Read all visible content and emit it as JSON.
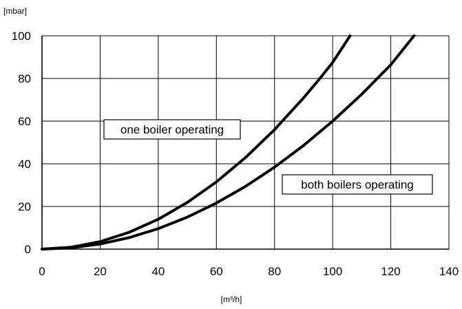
{
  "chart_data": {
    "type": "line",
    "title": "",
    "xlabel": "[m³/h]",
    "ylabel": "[mbar]",
    "xlim": [
      0,
      140
    ],
    "ylim": [
      0,
      100
    ],
    "xticks": [
      0,
      20,
      40,
      60,
      80,
      100,
      120,
      140
    ],
    "yticks": [
      0,
      20,
      40,
      60,
      80,
      100
    ],
    "grid": true,
    "legend": "none",
    "line_color": "#000000",
    "series": [
      {
        "x": [
          0,
          10,
          20,
          30,
          40,
          50,
          60,
          70,
          80,
          90,
          95,
          100,
          106
        ],
        "y": [
          0,
          0.9,
          3.5,
          7.9,
          14,
          21.9,
          31.5,
          42.9,
          56,
          70.9,
          79,
          87.5,
          100
        ]
      },
      {
        "x": [
          0,
          10,
          20,
          30,
          40,
          50,
          60,
          70,
          80,
          90,
          100,
          110,
          120,
          128
        ],
        "y": [
          0,
          0.6,
          2.4,
          5.4,
          9.6,
          15,
          21.6,
          29.4,
          38.4,
          48.6,
          60,
          72.6,
          86.4,
          100
        ]
      }
    ],
    "annotations": [
      {
        "text": "one boiler operating",
        "series_index": 0
      },
      {
        "text": "both boilers operating",
        "series_index": 1
      }
    ]
  }
}
